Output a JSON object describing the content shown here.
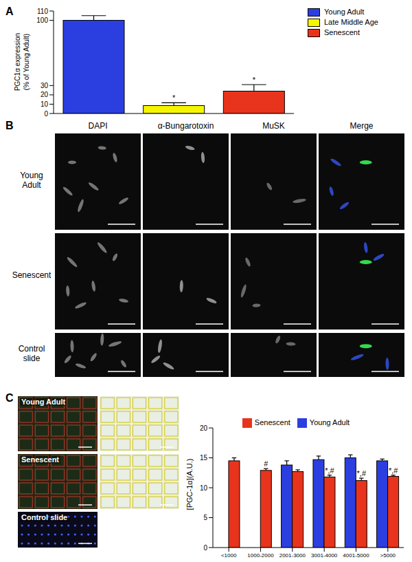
{
  "chart_data": [
    {
      "type": "bar",
      "title": "A",
      "categories": [
        "Young Adult",
        "Late Middle Age",
        "Senescent"
      ],
      "values": [
        100,
        8.5,
        24
      ],
      "errors": [
        5,
        3,
        7
      ],
      "significance": [
        null,
        "*",
        "*"
      ],
      "colors": [
        "#2b3fe0",
        "#f5f500",
        "#e8341c"
      ],
      "ylabel": "PGC1α expression\n(% of Young Adult)",
      "ylim": [
        0,
        110
      ],
      "yticks": [
        0,
        10,
        20,
        30,
        100,
        110
      ],
      "legend": "top-right",
      "tick_labels": "y",
      "grid": false
    },
    {
      "type": "bar",
      "categories": [
        "<1000",
        "1000-2000",
        "2001-3000",
        "3001-4000",
        "4001-5000",
        ">5000"
      ],
      "series": [
        {
          "name": "Young Adult",
          "color": "#2b3fe0",
          "values": [
            null,
            null,
            13.8,
            14.7,
            15.0,
            14.5
          ],
          "errors": [
            null,
            null,
            0.7,
            0.6,
            0.5,
            0.3
          ]
        },
        {
          "name": "Senescent",
          "color": "#e8341c",
          "values": [
            14.5,
            12.9,
            12.7,
            11.8,
            11.2,
            11.9
          ],
          "errors": [
            0.5,
            0.3,
            0.3,
            0.3,
            0.4,
            0.2
          ],
          "significance": [
            null,
            "#",
            null,
            "*,#",
            "*,#",
            "*,#"
          ]
        }
      ],
      "ylabel": "[PGC-1α](A.U.)",
      "ylim": [
        0,
        20
      ],
      "yticks": [
        0,
        5,
        10,
        15,
        20
      ],
      "legend": "top",
      "grid": false
    }
  ],
  "panel_b": {
    "label": "B",
    "columns": [
      "DAPI",
      "α-Bungarotoxin",
      "MuSK",
      "Merge"
    ],
    "rows": [
      "Young Adult",
      "Senescent",
      "Control slide"
    ]
  },
  "panel_c": {
    "label": "C",
    "rows": [
      "Young Adult",
      "Senescent",
      "Control slide"
    ]
  }
}
